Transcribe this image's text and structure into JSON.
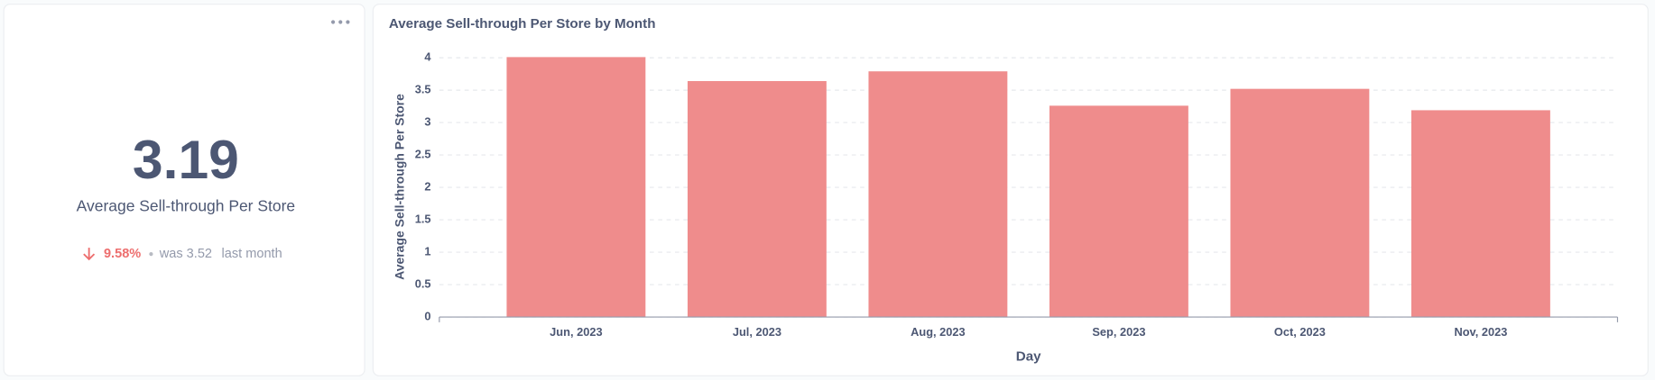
{
  "kpi": {
    "value": "3.19",
    "label": "Average Sell-through Per Store",
    "change": "9.58%",
    "previous": "was 3.52",
    "period": "last month"
  },
  "chart_data": {
    "type": "bar",
    "title": "Average Sell-through Per Store by Month",
    "x_label": "Day",
    "y_label": "Average Sell-through Per Store",
    "categories": [
      "Jun, 2023",
      "Jul, 2023",
      "Aug, 2023",
      "Sep, 2023",
      "Oct, 2023",
      "Nov, 2023"
    ],
    "values": [
      4.01,
      3.64,
      3.79,
      3.26,
      3.52,
      3.19
    ],
    "color": "#ef8c8c",
    "ylim": [
      0,
      4
    ],
    "yticks": [
      0,
      0.5,
      1,
      1.5,
      2,
      2.5,
      3,
      3.5,
      4
    ],
    "grid": true
  }
}
